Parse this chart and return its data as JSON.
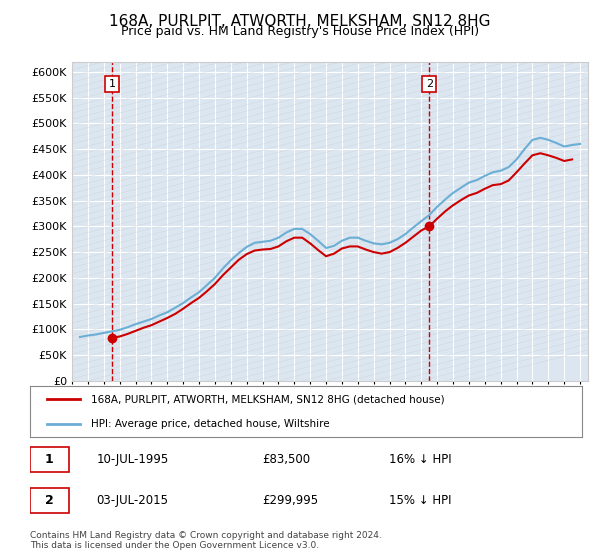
{
  "title": "168A, PURLPIT, ATWORTH, MELKSHAM, SN12 8HG",
  "subtitle": "Price paid vs. HM Land Registry's House Price Index (HPI)",
  "ylim": [
    0,
    620000
  ],
  "yticks": [
    0,
    50000,
    100000,
    150000,
    200000,
    250000,
    300000,
    350000,
    400000,
    450000,
    500000,
    550000,
    600000
  ],
  "bg_color": "#dce6f1",
  "grid_color": "#ffffff",
  "hpi_color": "#6baed6",
  "price_color": "#cc0000",
  "dashed_color": "#cc0000",
  "marker1_date": 1995.53,
  "marker1_value": 83500,
  "marker2_date": 2015.5,
  "marker2_value": 299995,
  "legend_label1": "168A, PURLPIT, ATWORTH, MELKSHAM, SN12 8HG (detached house)",
  "legend_label2": "HPI: Average price, detached house, Wiltshire",
  "annotation1": "1",
  "annotation2": "2",
  "table_row1": [
    "1",
    "10-JUL-1995",
    "£83,500",
    "16% ↓ HPI"
  ],
  "table_row2": [
    "2",
    "03-JUL-2015",
    "£299,995",
    "15% ↓ HPI"
  ],
  "footer": "Contains HM Land Registry data © Crown copyright and database right 2024.\nThis data is licensed under the Open Government Licence v3.0.",
  "hpi_data": {
    "years": [
      1993.5,
      1994.0,
      1994.5,
      1995.0,
      1995.5,
      1996.0,
      1996.5,
      1997.0,
      1997.5,
      1998.0,
      1998.5,
      1999.0,
      1999.5,
      2000.0,
      2000.5,
      2001.0,
      2001.5,
      2002.0,
      2002.5,
      2003.0,
      2003.5,
      2004.0,
      2004.5,
      2005.0,
      2005.5,
      2006.0,
      2006.5,
      2007.0,
      2007.5,
      2008.0,
      2008.5,
      2009.0,
      2009.5,
      2010.0,
      2010.5,
      2011.0,
      2011.5,
      2012.0,
      2012.5,
      2013.0,
      2013.5,
      2014.0,
      2014.5,
      2015.0,
      2015.5,
      2016.0,
      2016.5,
      2017.0,
      2017.5,
      2018.0,
      2018.5,
      2019.0,
      2019.5,
      2020.0,
      2020.5,
      2021.0,
      2021.5,
      2022.0,
      2022.5,
      2023.0,
      2023.5,
      2024.0,
      2024.5,
      2025.0
    ],
    "values": [
      85000,
      88000,
      90000,
      93000,
      96000,
      99000,
      104000,
      110000,
      115000,
      120000,
      127000,
      133000,
      142000,
      151000,
      162000,
      172000,
      186000,
      200000,
      218000,
      234000,
      248000,
      260000,
      268000,
      270000,
      272000,
      278000,
      288000,
      295000,
      295000,
      285000,
      272000,
      258000,
      262000,
      272000,
      278000,
      278000,
      272000,
      267000,
      265000,
      268000,
      275000,
      285000,
      298000,
      310000,
      322000,
      338000,
      352000,
      365000,
      375000,
      385000,
      390000,
      398000,
      405000,
      408000,
      415000,
      430000,
      450000,
      468000,
      472000,
      468000,
      462000,
      455000,
      458000,
      460000
    ]
  },
  "price_data": {
    "years": [
      1995.53,
      1995.53,
      1996.0,
      1996.5,
      1997.0,
      1997.5,
      1998.0,
      1998.5,
      1999.0,
      1999.5,
      2000.0,
      2000.5,
      2001.0,
      2001.5,
      2002.0,
      2002.5,
      2003.0,
      2003.5,
      2004.0,
      2004.5,
      2005.0,
      2005.5,
      2006.0,
      2006.5,
      2007.0,
      2007.5,
      2008.0,
      2008.5,
      2009.0,
      2009.5,
      2010.0,
      2010.5,
      2011.0,
      2011.5,
      2012.0,
      2012.5,
      2013.0,
      2013.5,
      2014.0,
      2014.5,
      2015.0,
      2015.5,
      2016.0,
      2016.5,
      2017.0,
      2017.5,
      2018.0,
      2018.5,
      2019.0,
      2019.5,
      2020.0,
      2020.5,
      2021.0,
      2021.5,
      2022.0,
      2022.5,
      2023.0,
      2023.5,
      2024.0,
      2024.5
    ],
    "values": [
      83500,
      83500,
      86000,
      91000,
      97000,
      103000,
      108000,
      115000,
      122000,
      130000,
      140000,
      151000,
      161000,
      174000,
      188000,
      205000,
      220000,
      235000,
      246000,
      253000,
      255000,
      256000,
      261000,
      271000,
      278000,
      278000,
      267000,
      254000,
      242000,
      247000,
      257000,
      261000,
      261000,
      255000,
      250000,
      247000,
      250000,
      258000,
      268000,
      280000,
      292000,
      299995,
      315000,
      329000,
      341000,
      351000,
      360000,
      365000,
      373000,
      380000,
      382000,
      389000,
      405000,
      422000,
      438000,
      442000,
      438000,
      433000,
      427000,
      430000
    ]
  }
}
